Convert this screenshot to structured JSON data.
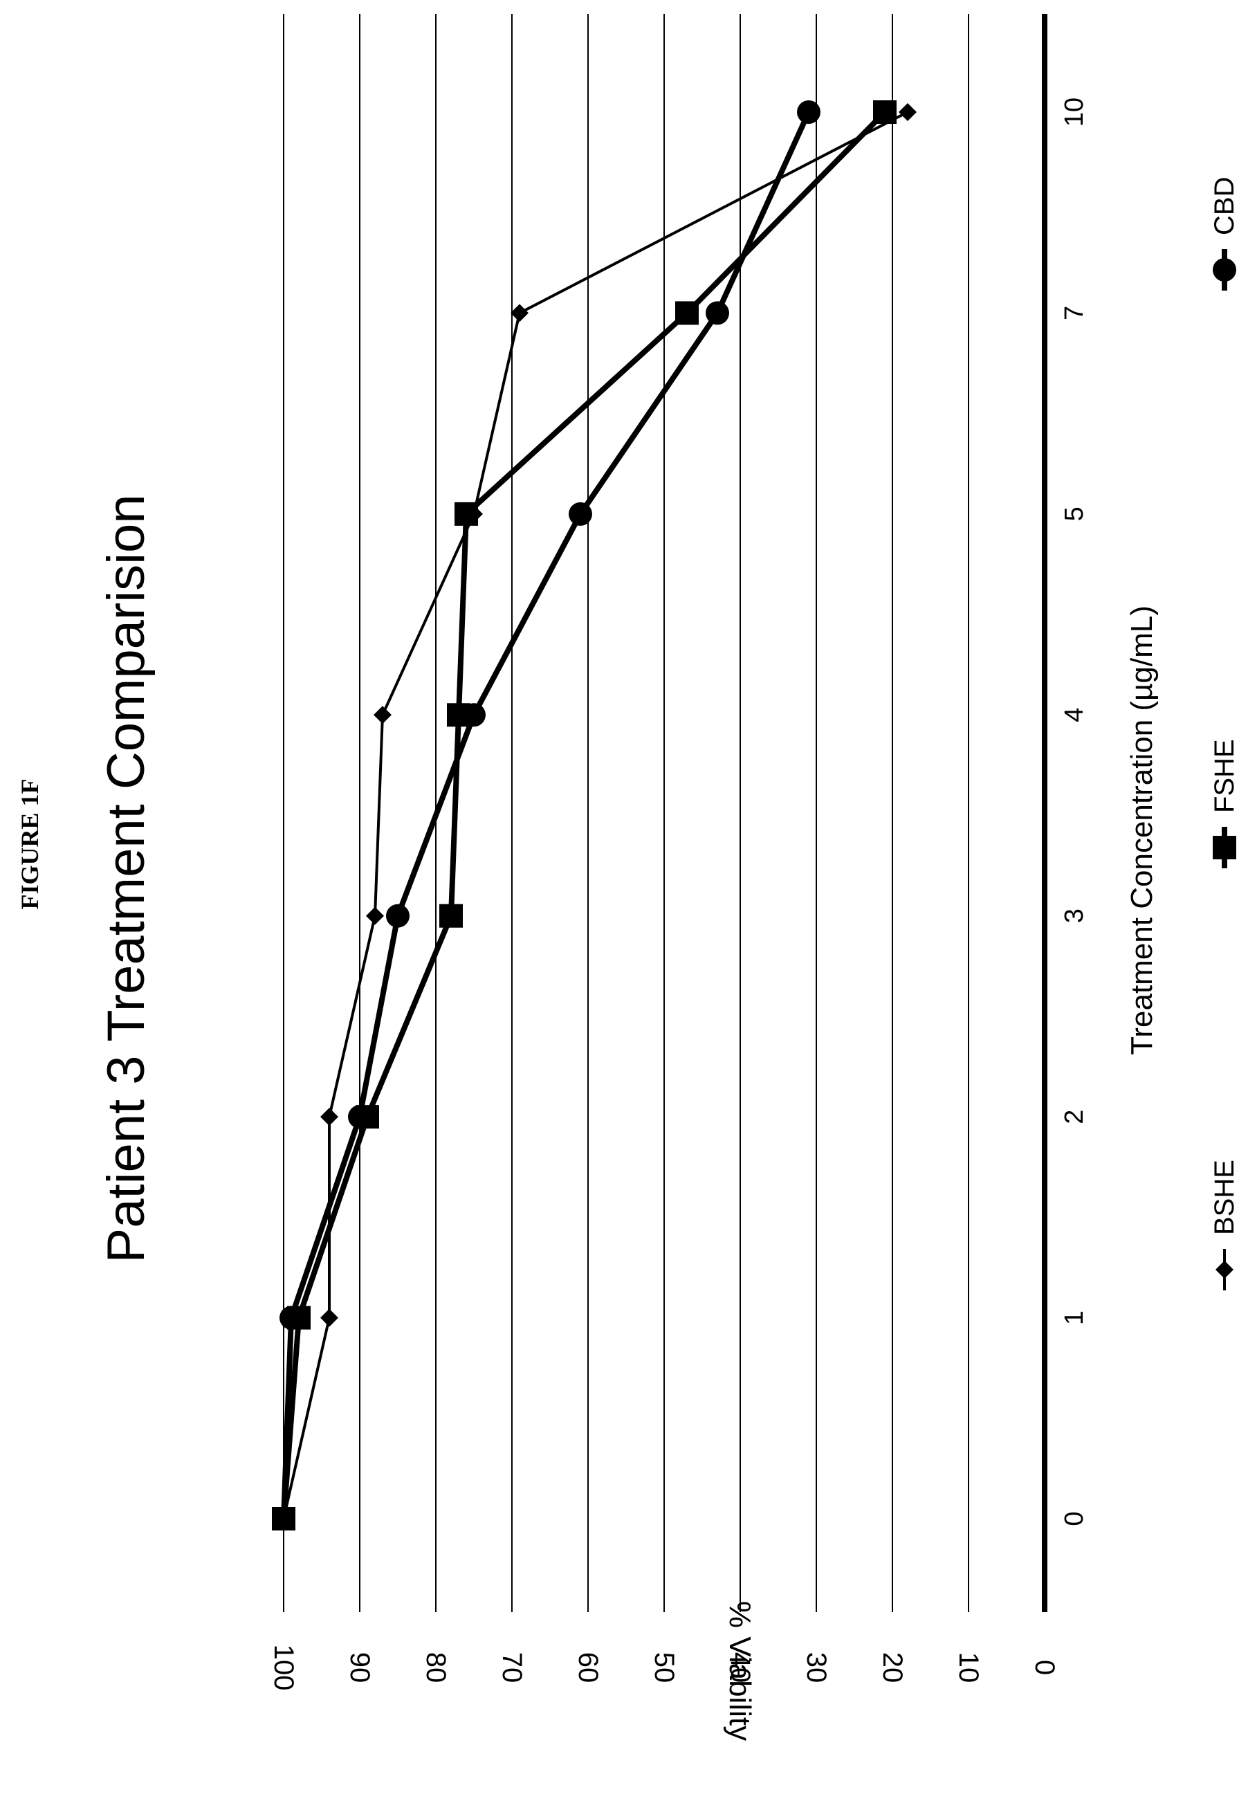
{
  "figure_label": "FIGURE 1F",
  "chart_data": {
    "type": "line",
    "title": "Patient 3 Treatment Comparision",
    "xlabel": "Treatment Concentration (µg/mL)",
    "ylabel": "% Viability",
    "categories": [
      "0",
      "1",
      "2",
      "3",
      "4",
      "5",
      "7",
      "10"
    ],
    "ylim": [
      0,
      100
    ],
    "yticks": [
      "0",
      "10",
      "20",
      "30",
      "40",
      "50",
      "60",
      "70",
      "80",
      "90",
      "100"
    ],
    "grid": true,
    "legend_position": "bottom",
    "orientation": "rotated-90-counterclockwise",
    "series": [
      {
        "name": "BSHE",
        "marker": "diamond",
        "values": [
          100,
          94,
          94,
          88,
          87,
          75,
          69,
          18
        ]
      },
      {
        "name": "FSHE",
        "marker": "square",
        "values": [
          100,
          98,
          89,
          78,
          77,
          76,
          47,
          21
        ]
      },
      {
        "name": "CBD",
        "marker": "circle",
        "values": [
          100,
          99,
          90,
          85,
          75,
          61,
          43,
          31
        ]
      }
    ]
  }
}
